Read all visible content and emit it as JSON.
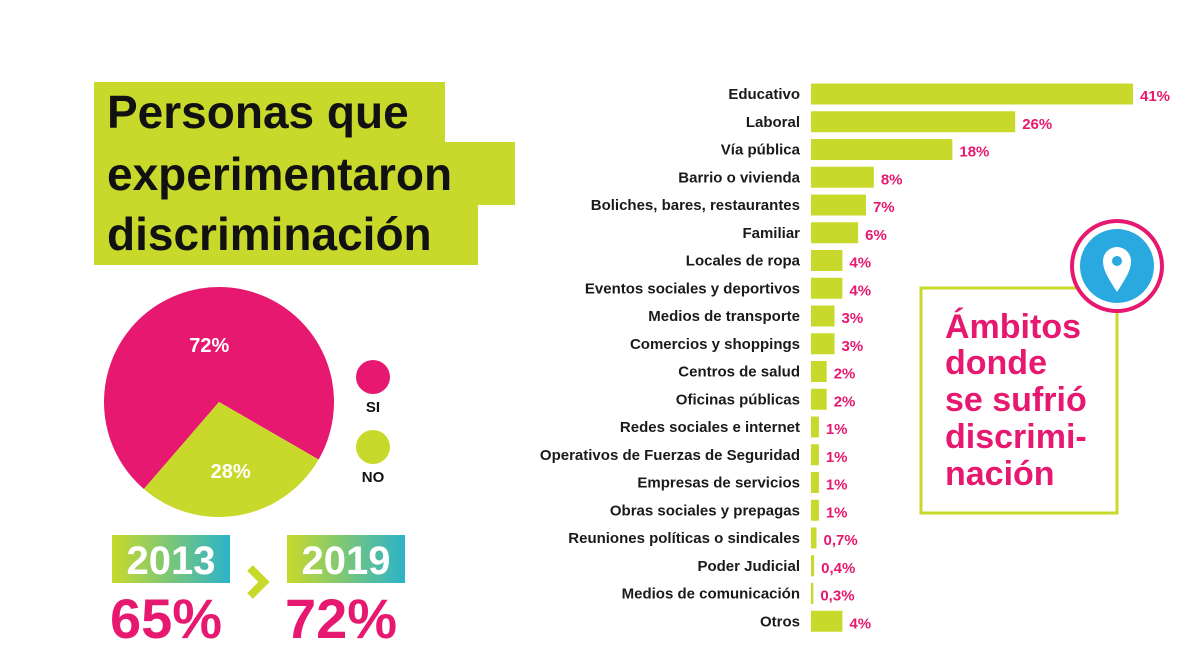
{
  "title_lines": [
    "Personas que",
    "experimentaron",
    "discriminación"
  ],
  "comparison": {
    "years": [
      "2013",
      "2019"
    ],
    "values": [
      "65%",
      "72%"
    ]
  },
  "box_lines": [
    "Ámbitos",
    "donde",
    "se sufrió",
    "discrimi-",
    "nación"
  ],
  "chart_data": [
    {
      "type": "pie",
      "categories": [
        "SI",
        "NO"
      ],
      "values": [
        72,
        28
      ],
      "value_labels": [
        "72%",
        "28%"
      ],
      "colors": [
        "#e6186f",
        "#c8d92b"
      ]
    },
    {
      "type": "bar",
      "orientation": "horizontal",
      "categories": [
        "Educativo",
        "Laboral",
        "Vía pública",
        "Barrio o vivienda",
        "Boliches, bares, restaurantes",
        "Familiar",
        "Locales de ropa",
        "Eventos sociales y deportivos",
        "Medios de transporte",
        "Comercios y shoppings",
        "Centros de salud",
        "Oficinas públicas",
        "Redes sociales e internet",
        "Operativos de Fuerzas de Seguridad",
        "Empresas de servicios",
        "Obras sociales y prepagas",
        "Reuniones políticas o sindicales",
        "Poder Judicial",
        "Medios de comunicación",
        "Otros"
      ],
      "values": [
        41,
        26,
        18,
        8,
        7,
        6,
        4,
        4,
        3,
        3,
        2,
        2,
        1,
        1,
        1,
        1,
        0.7,
        0.4,
        0.3,
        4
      ],
      "value_labels": [
        "41%",
        "26%",
        "18%",
        "8%",
        "7%",
        "6%",
        "4%",
        "4%",
        "3%",
        "3%",
        "2%",
        "2%",
        "1%",
        "1%",
        "1%",
        "1%",
        "0,7%",
        "0,4%",
        "0,3%",
        "4%"
      ],
      "color": "#c8d92b"
    }
  ]
}
